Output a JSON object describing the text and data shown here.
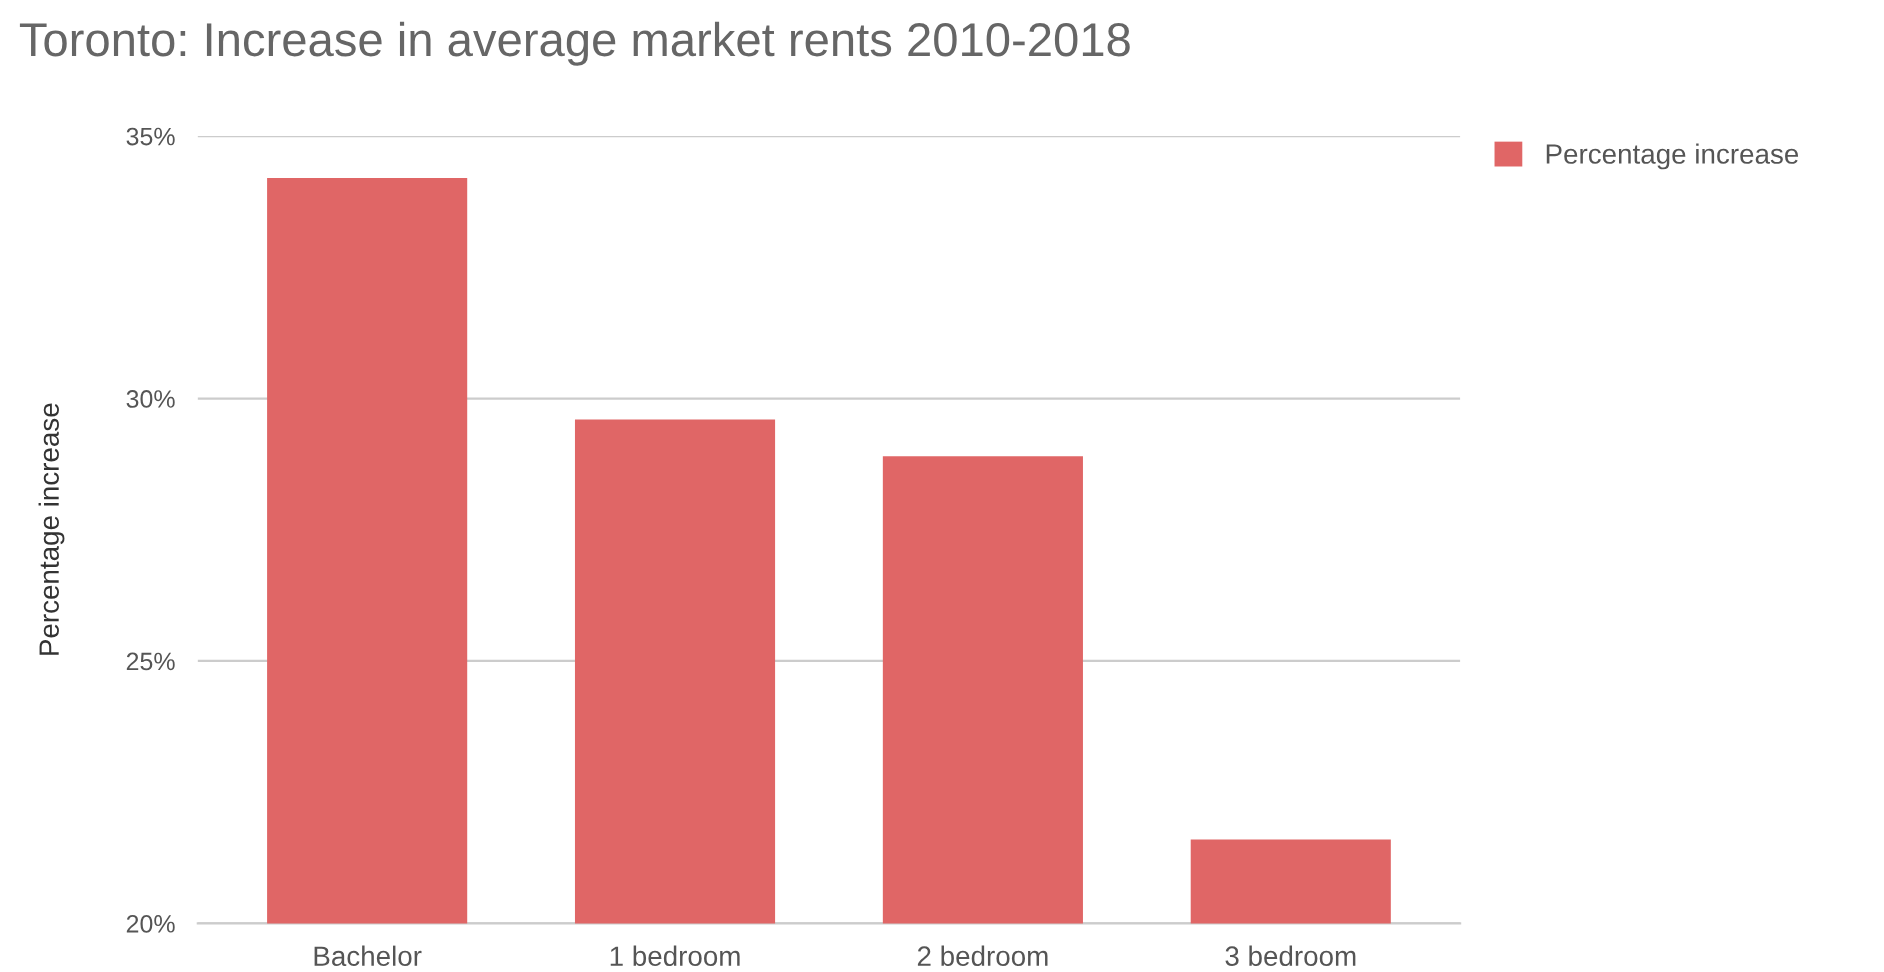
{
  "chart_data": {
    "type": "bar",
    "title": "Toronto: Increase in average market rents 2010-2018",
    "ylabel": "Percentage increase",
    "categories": [
      "Bachelor",
      "1 bedroom",
      "2 bedroom",
      "3 bedroom"
    ],
    "series": [
      {
        "name": "Percentage increase",
        "color": "#e06666",
        "values": [
          34.2,
          29.6,
          28.9,
          21.6
        ]
      }
    ],
    "ylim": [
      20,
      35
    ],
    "yticks": [
      {
        "value": 20,
        "label": "20%"
      },
      {
        "value": 25,
        "label": "25%"
      },
      {
        "value": 30,
        "label": "30%"
      },
      {
        "value": 35,
        "label": "35%"
      }
    ],
    "grid": "y",
    "legend": "top right"
  }
}
